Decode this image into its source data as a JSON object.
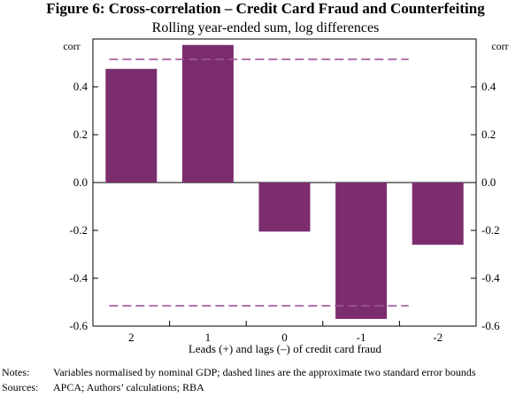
{
  "chart_data": {
    "type": "bar",
    "title": "Figure 6: Cross-correlation – Credit Card Fraud and Counterfeiting",
    "subtitle": "Rolling year-ended sum, log differences",
    "categories": [
      "2",
      "1",
      "0",
      "-1",
      "-2"
    ],
    "values": [
      0.475,
      0.575,
      -0.205,
      -0.57,
      -0.26
    ],
    "bounds": {
      "upper": 0.515,
      "lower": -0.515
    },
    "xlabel": "Leads (+) and lags (–) of credit card fraud",
    "ylabel_left": "corr",
    "ylabel_right": "corr",
    "ylim": [
      -0.6,
      0.6
    ],
    "yticks": [
      0.4,
      0.2,
      0.0,
      -0.2,
      -0.4,
      -0.6
    ],
    "ytick_labels": [
      "0.4",
      "0.2",
      "0.0",
      "-0.2",
      "-0.4",
      "-0.6"
    ],
    "bar_color": "#7b2d6e",
    "bound_color": "#a0559a"
  },
  "notes": {
    "notes_key": "Notes:",
    "notes_text": "Variables normalised by nominal GDP; dashed lines are the approximate two standard error bounds",
    "sources_key": "Sources:",
    "sources_text": "APCA; Authors’ calculations; RBA"
  }
}
